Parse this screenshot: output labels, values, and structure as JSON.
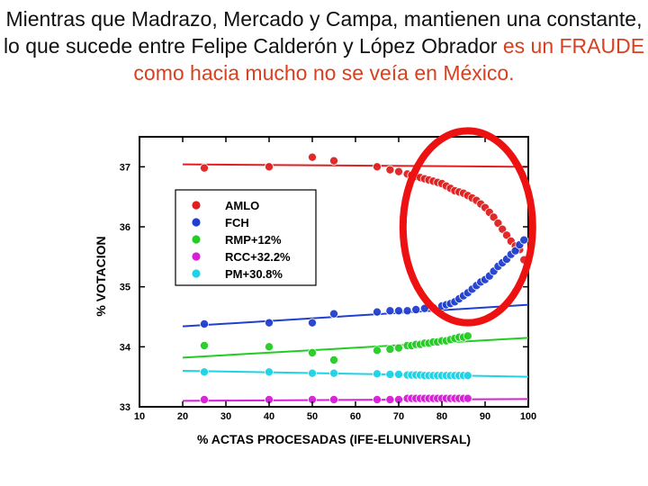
{
  "headline": {
    "text_main": "Mientras que Madrazo, Mercado y Campa, mantienen una constante, lo que sucede entre Felipe Calderón y López Obrador ",
    "text_highlight": "es un FRAUDE como hacia mucho no se veía en México.",
    "highlight_color": "#d9401f"
  },
  "chart_data": {
    "type": "scatter",
    "xlabel": "% ACTAS PROCESADAS (IFE-ELUNIVERSAL)",
    "ylabel": "% VOTACION",
    "xlim": [
      10,
      100
    ],
    "ylim": [
      33,
      37.5
    ],
    "xticks": [
      10,
      20,
      30,
      40,
      50,
      60,
      70,
      80,
      90,
      100
    ],
    "yticks": [
      33,
      34,
      35,
      36,
      37
    ],
    "grid": false,
    "legend_position": "upper-left",
    "series": [
      {
        "name": "AMLO",
        "color": "#e02020",
        "points": [
          [
            25,
            36.98
          ],
          [
            40,
            37.0
          ],
          [
            50,
            37.16
          ],
          [
            55,
            37.1
          ],
          [
            65,
            37.0
          ],
          [
            68,
            36.95
          ],
          [
            70,
            36.92
          ],
          [
            72,
            36.88
          ],
          [
            73,
            36.86
          ],
          [
            74,
            36.84
          ],
          [
            75,
            36.82
          ],
          [
            76,
            36.8
          ],
          [
            77,
            36.78
          ],
          [
            78,
            36.76
          ],
          [
            79,
            36.74
          ],
          [
            80,
            36.72
          ],
          [
            81,
            36.68
          ],
          [
            82,
            36.64
          ],
          [
            83,
            36.6
          ],
          [
            84,
            36.58
          ],
          [
            85,
            36.56
          ],
          [
            86,
            36.52
          ],
          [
            87,
            36.48
          ],
          [
            88,
            36.44
          ],
          [
            89,
            36.38
          ],
          [
            90,
            36.32
          ],
          [
            91,
            36.24
          ],
          [
            92,
            36.16
          ],
          [
            93,
            36.06
          ],
          [
            94,
            35.96
          ],
          [
            95,
            35.86
          ],
          [
            96,
            35.76
          ],
          [
            97,
            35.68
          ],
          [
            98,
            35.62
          ],
          [
            99,
            35.45
          ]
        ],
        "fit": [
          [
            20,
            37.04
          ],
          [
            100,
            37.0
          ]
        ]
      },
      {
        "name": "FCH",
        "color": "#1f3fd0",
        "points": [
          [
            25,
            34.38
          ],
          [
            40,
            34.4
          ],
          [
            50,
            34.4
          ],
          [
            55,
            34.55
          ],
          [
            65,
            34.58
          ],
          [
            68,
            34.6
          ],
          [
            70,
            34.6
          ],
          [
            72,
            34.6
          ],
          [
            74,
            34.62
          ],
          [
            76,
            34.64
          ],
          [
            78,
            34.65
          ],
          [
            80,
            34.68
          ],
          [
            81,
            34.7
          ],
          [
            82,
            34.72
          ],
          [
            83,
            34.75
          ],
          [
            84,
            34.8
          ],
          [
            85,
            34.85
          ],
          [
            86,
            34.9
          ],
          [
            87,
            34.96
          ],
          [
            88,
            35.02
          ],
          [
            89,
            35.08
          ],
          [
            90,
            35.12
          ],
          [
            91,
            35.18
          ],
          [
            92,
            35.26
          ],
          [
            93,
            35.34
          ],
          [
            94,
            35.4
          ],
          [
            95,
            35.46
          ],
          [
            96,
            35.54
          ],
          [
            97,
            35.6
          ],
          [
            98,
            35.7
          ],
          [
            99,
            35.78
          ]
        ],
        "fit": [
          [
            20,
            34.34
          ],
          [
            100,
            34.7
          ]
        ]
      },
      {
        "name": "RMP+12%",
        "color": "#22cc22",
        "points": [
          [
            25,
            34.02
          ],
          [
            40,
            34.0
          ],
          [
            50,
            33.9
          ],
          [
            55,
            33.78
          ],
          [
            65,
            33.94
          ],
          [
            68,
            33.96
          ],
          [
            70,
            33.98
          ],
          [
            72,
            34.02
          ],
          [
            73,
            34.02
          ],
          [
            74,
            34.04
          ],
          [
            75,
            34.04
          ],
          [
            76,
            34.06
          ],
          [
            77,
            34.06
          ],
          [
            78,
            34.08
          ],
          [
            79,
            34.08
          ],
          [
            80,
            34.1
          ],
          [
            81,
            34.1
          ],
          [
            82,
            34.12
          ],
          [
            83,
            34.14
          ],
          [
            84,
            34.16
          ],
          [
            85,
            34.16
          ],
          [
            86,
            34.18
          ]
        ],
        "fit": [
          [
            20,
            33.82
          ],
          [
            100,
            34.15
          ]
        ]
      },
      {
        "name": "RCC+32.2%",
        "color": "#d81fd8",
        "points": [
          [
            25,
            33.12
          ],
          [
            40,
            33.12
          ],
          [
            50,
            33.12
          ],
          [
            55,
            33.12
          ],
          [
            65,
            33.12
          ],
          [
            68,
            33.12
          ],
          [
            70,
            33.12
          ],
          [
            72,
            33.14
          ],
          [
            73,
            33.14
          ],
          [
            74,
            33.14
          ],
          [
            75,
            33.14
          ],
          [
            76,
            33.14
          ],
          [
            77,
            33.14
          ],
          [
            78,
            33.14
          ],
          [
            79,
            33.14
          ],
          [
            80,
            33.14
          ],
          [
            81,
            33.14
          ],
          [
            82,
            33.14
          ],
          [
            83,
            33.14
          ],
          [
            84,
            33.14
          ],
          [
            85,
            33.14
          ],
          [
            86,
            33.14
          ]
        ],
        "fit": [
          [
            20,
            33.1
          ],
          [
            100,
            33.13
          ]
        ]
      },
      {
        "name": "PM+30.8%",
        "color": "#1fd2e6",
        "points": [
          [
            25,
            33.58
          ],
          [
            40,
            33.58
          ],
          [
            50,
            33.56
          ],
          [
            55,
            33.56
          ],
          [
            65,
            33.55
          ],
          [
            68,
            33.54
          ],
          [
            70,
            33.54
          ],
          [
            72,
            33.53
          ],
          [
            73,
            33.53
          ],
          [
            74,
            33.53
          ],
          [
            75,
            33.53
          ],
          [
            76,
            33.52
          ],
          [
            77,
            33.52
          ],
          [
            78,
            33.52
          ],
          [
            79,
            33.52
          ],
          [
            80,
            33.52
          ],
          [
            81,
            33.52
          ],
          [
            82,
            33.52
          ],
          [
            83,
            33.52
          ],
          [
            84,
            33.52
          ],
          [
            85,
            33.52
          ],
          [
            86,
            33.52
          ]
        ],
        "fit": [
          [
            20,
            33.6
          ],
          [
            100,
            33.5
          ]
        ]
      }
    ]
  },
  "annotation": {
    "shape": "ellipse",
    "color": "#ee1111",
    "center": [
      86,
      36.0
    ],
    "radius_x_units": 15,
    "radius_y_units": 1.6
  }
}
